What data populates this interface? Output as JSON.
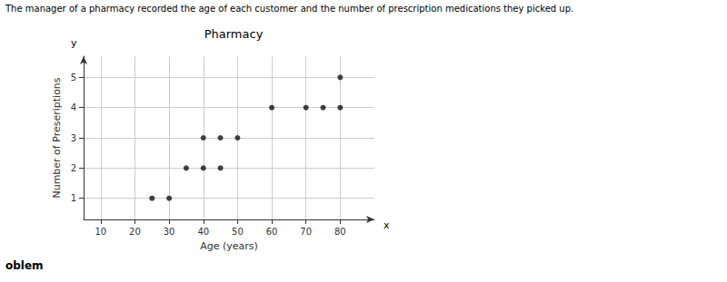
{
  "chart_data": {
    "type": "scatter",
    "title": "Pharmacy",
    "x_label": "Age (years)",
    "y_label": "Number of Preseriptions",
    "x": [
      25,
      30,
      35,
      40,
      45,
      40,
      45,
      50,
      60,
      70,
      75,
      80,
      80
    ],
    "values": [
      1,
      1,
      2,
      2,
      2,
      3,
      3,
      3,
      4,
      4,
      4,
      4,
      5
    ],
    "color": "#111111",
    "xlim": [
      5,
      90
    ],
    "xticks": [
      10,
      20,
      30,
      40,
      50,
      60,
      70,
      80
    ],
    "ylim": [
      0.3,
      5.7
    ],
    "yticks": [
      1,
      2,
      3,
      4,
      5
    ],
    "grid": true,
    "annotations": [
      "The manager of a pharmacy recorded the age of each customer and the number of prescription medications they picked up.",
      "oblem",
      "x",
      "y"
    ]
  }
}
